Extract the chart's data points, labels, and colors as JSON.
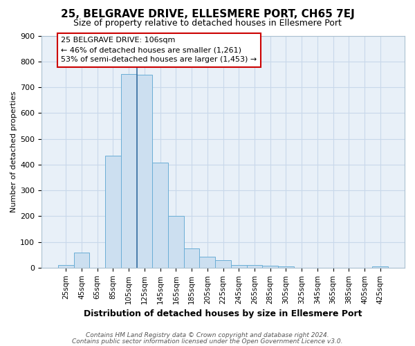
{
  "title": "25, BELGRAVE DRIVE, ELLESMERE PORT, CH65 7EJ",
  "subtitle": "Size of property relative to detached houses in Ellesmere Port",
  "xlabel": "Distribution of detached houses by size in Ellesmere Port",
  "ylabel": "Number of detached properties",
  "footnote1": "Contains HM Land Registry data © Crown copyright and database right 2024.",
  "footnote2": "Contains public sector information licensed under the Open Government Licence v3.0.",
  "bar_labels": [
    "25sqm",
    "45sqm",
    "65sqm",
    "85sqm",
    "105sqm",
    "125sqm",
    "145sqm",
    "165sqm",
    "185sqm",
    "205sqm",
    "225sqm",
    "245sqm",
    "265sqm",
    "285sqm",
    "305sqm",
    "325sqm",
    "345sqm",
    "365sqm",
    "385sqm",
    "405sqm",
    "425sqm"
  ],
  "bar_values": [
    10,
    58,
    0,
    435,
    750,
    748,
    408,
    200,
    75,
    43,
    28,
    10,
    10,
    8,
    5,
    0,
    0,
    0,
    0,
    0,
    5
  ],
  "bar_color": "#ccdff0",
  "bar_edge_color": "#6aaed6",
  "vline_index": 4.5,
  "vline_color": "#3a6fa0",
  "annotation_line1": "25 BELGRAVE DRIVE: 106sqm",
  "annotation_line2": "← 46% of detached houses are smaller (1,261)",
  "annotation_line3": "53% of semi-detached houses are larger (1,453) →",
  "annotation_box_facecolor": "#ffffff",
  "annotation_box_edgecolor": "#cc0000",
  "ylim": [
    0,
    900
  ],
  "yticks": [
    0,
    100,
    200,
    300,
    400,
    500,
    600,
    700,
    800,
    900
  ],
  "grid_color": "#c8d8ea",
  "background_color": "#ffffff",
  "plot_bg_color": "#e8f0f8",
  "title_fontsize": 11,
  "subtitle_fontsize": 9,
  "ylabel_fontsize": 8,
  "xlabel_fontsize": 9,
  "tick_fontsize": 7.5,
  "annotation_fontsize": 8,
  "footnote_fontsize": 6.5
}
